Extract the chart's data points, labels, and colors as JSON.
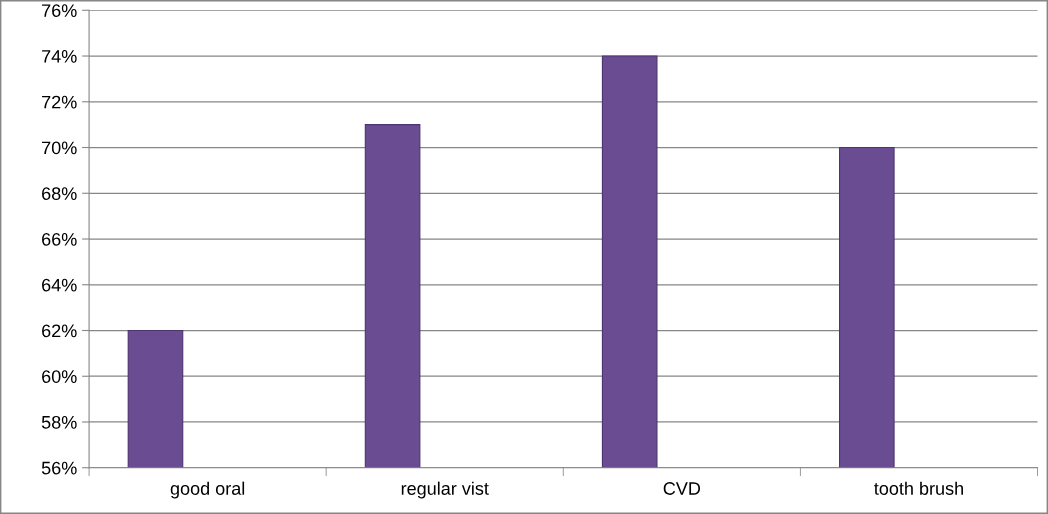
{
  "chart_data": {
    "type": "bar",
    "categories": [
      "good oral",
      "regular vist",
      "CVD",
      "tooth brush"
    ],
    "values": [
      62,
      71,
      74,
      70
    ],
    "color": "#6a4c93",
    "ylim": [
      56,
      76
    ],
    "yticks": [
      {
        "value": 56,
        "label": "56%"
      },
      {
        "value": 58,
        "label": "58%"
      },
      {
        "value": 60,
        "label": "60%"
      },
      {
        "value": 62,
        "label": "62%"
      },
      {
        "value": 64,
        "label": "64%"
      },
      {
        "value": 66,
        "label": "66%"
      },
      {
        "value": 68,
        "label": "68%"
      },
      {
        "value": 70,
        "label": "70%"
      },
      {
        "value": 72,
        "label": "72%"
      },
      {
        "value": 74,
        "label": "74%"
      },
      {
        "value": 76,
        "label": "76%"
      }
    ],
    "grid": "y"
  }
}
